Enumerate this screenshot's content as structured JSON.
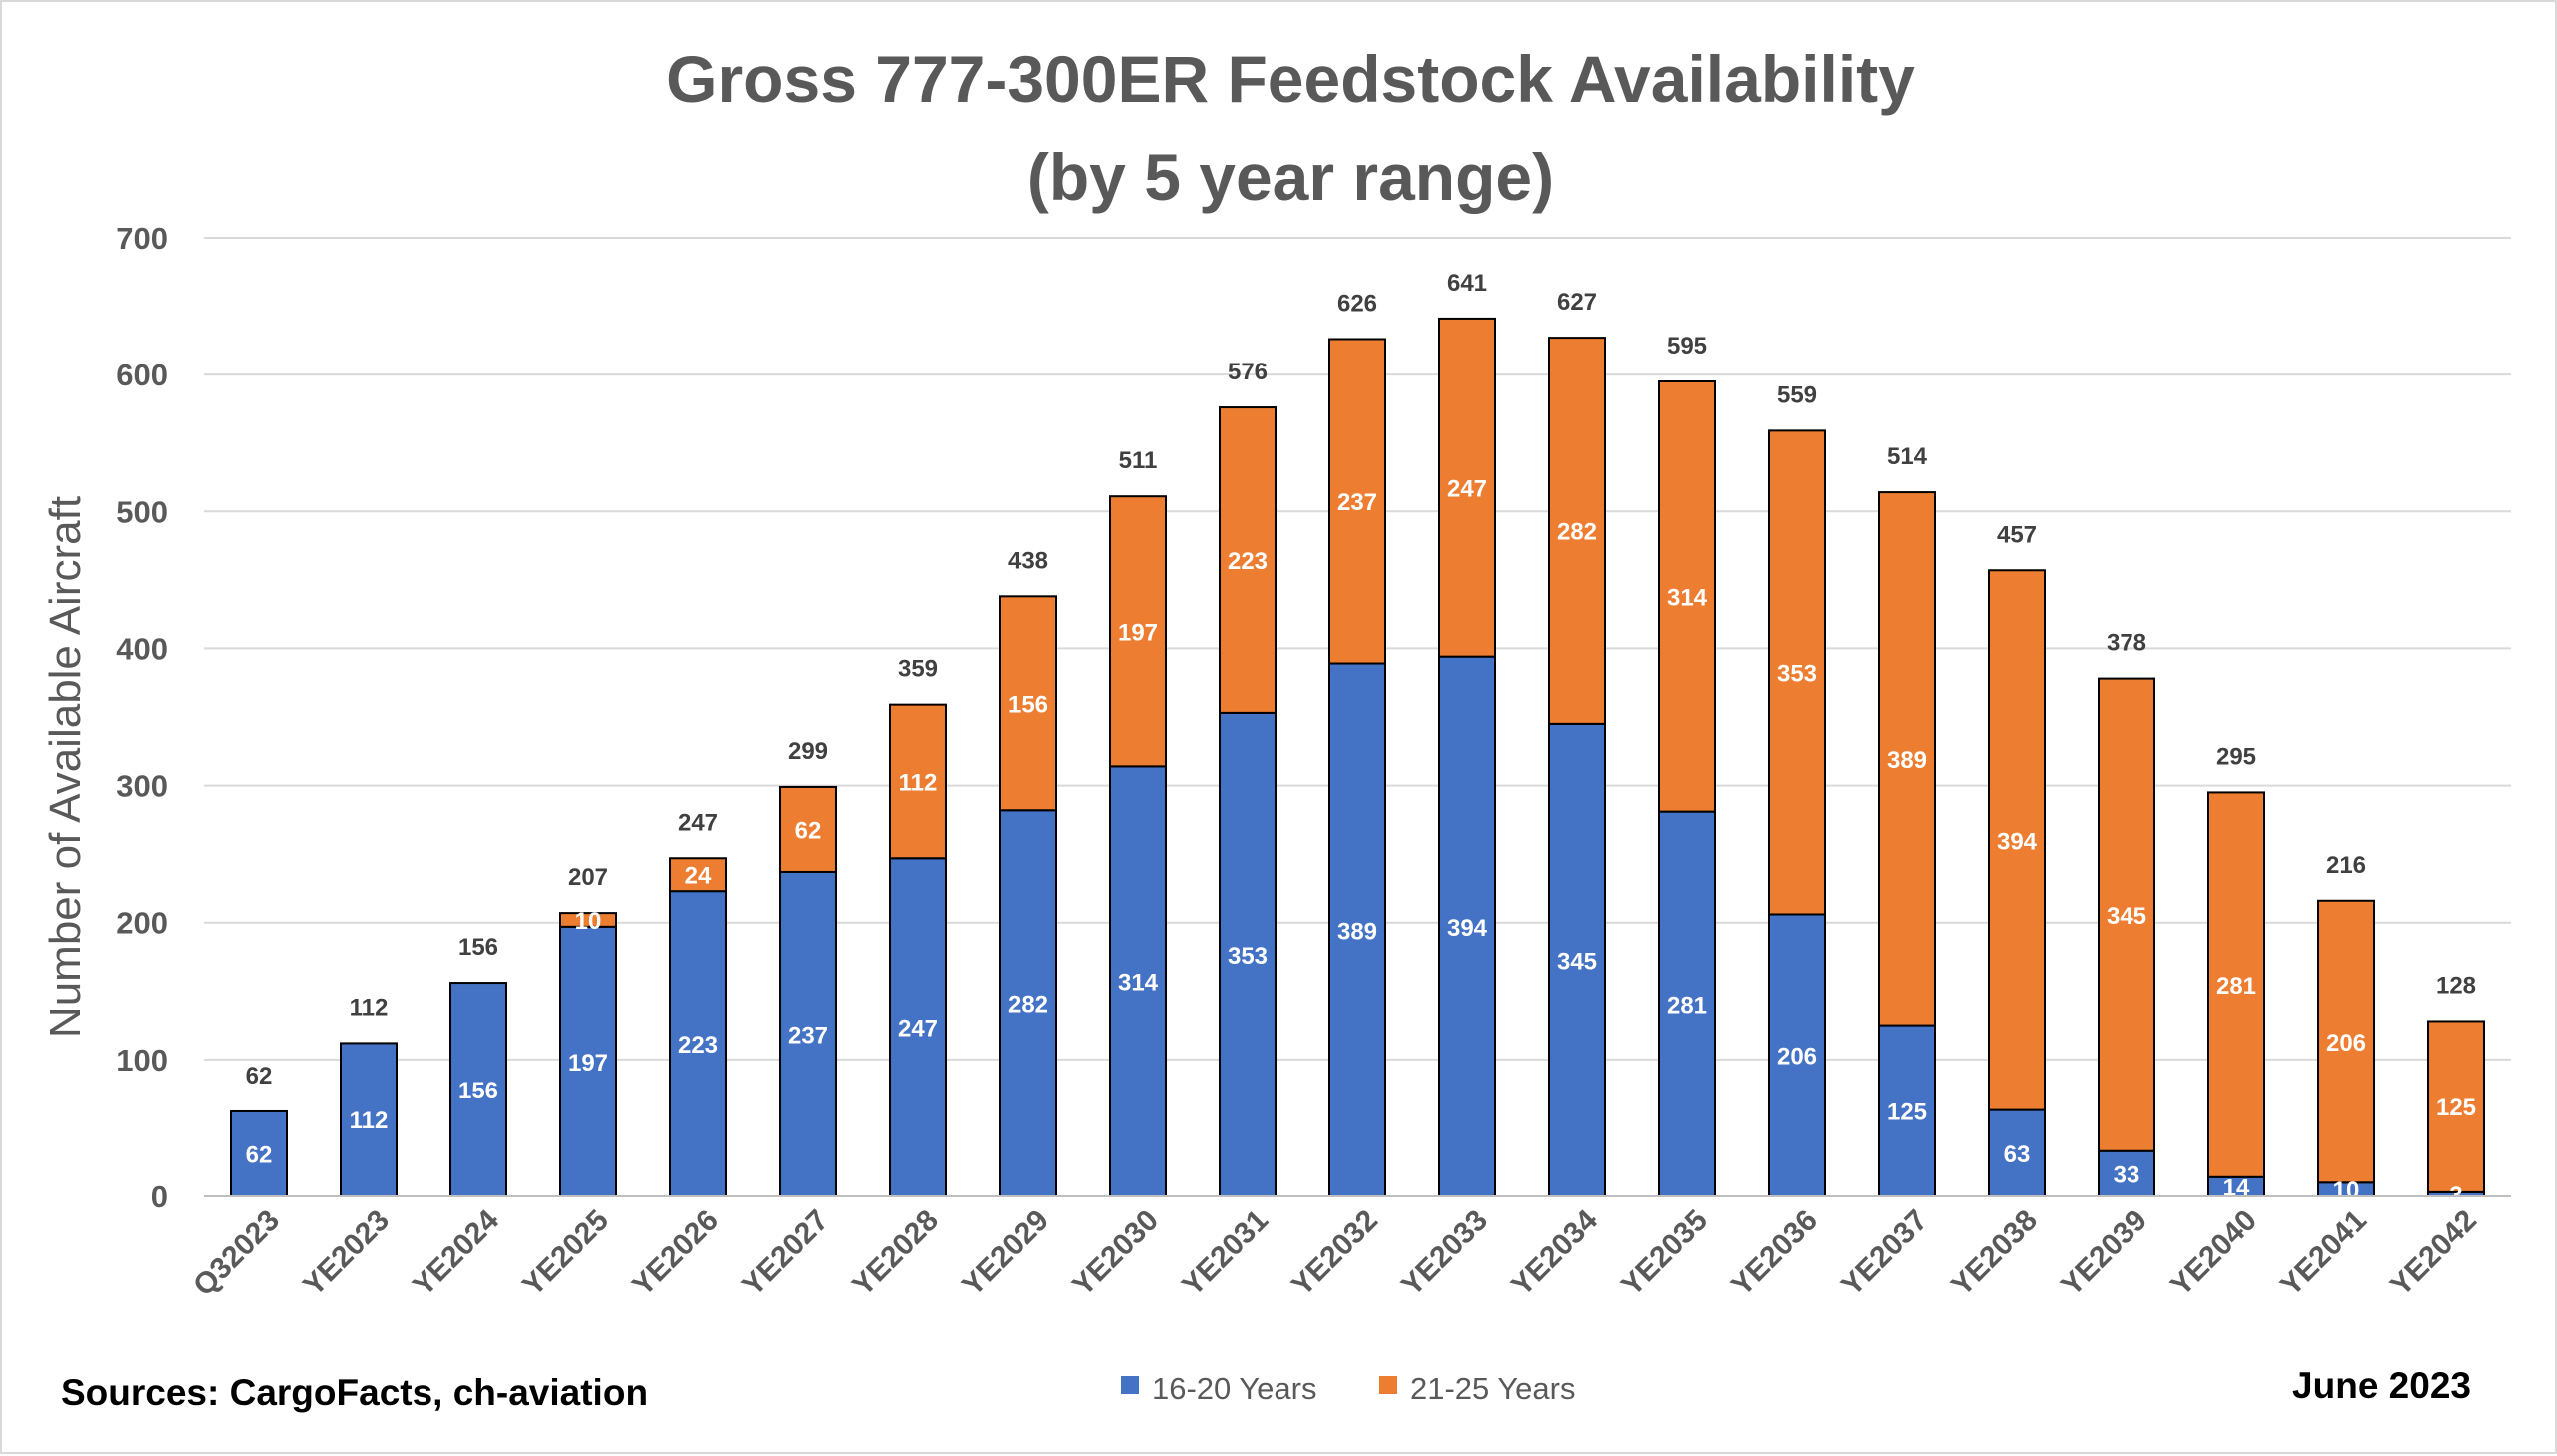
{
  "chart_data": {
    "type": "bar",
    "stacked": true,
    "title_line1": "Gross 777-300ER Feedstock Availability",
    "title_line2": "(by 5 year range)",
    "xlabel": "",
    "ylabel": "Number of Available Aircraft",
    "ylim": [
      0,
      700
    ],
    "yticks": [
      0,
      100,
      200,
      300,
      400,
      500,
      600,
      700
    ],
    "grid": true,
    "legend_position": "bottom",
    "categories": [
      "Q32023",
      "YE2023",
      "YE2024",
      "YE2025",
      "YE2026",
      "YE2027",
      "YE2028",
      "YE2029",
      "YE2030",
      "YE2031",
      "YE2032",
      "YE2033",
      "YE2034",
      "YE2035",
      "YE2036",
      "YE2037",
      "YE2038",
      "YE2039",
      "YE2040",
      "YE2041",
      "YE2042"
    ],
    "series": [
      {
        "name": "16-20 Years",
        "color": "#4472c4",
        "values": [
          62,
          112,
          156,
          197,
          223,
          237,
          247,
          282,
          314,
          353,
          389,
          394,
          345,
          281,
          206,
          125,
          63,
          33,
          14,
          10,
          3
        ]
      },
      {
        "name": "21-25 Years",
        "color": "#ed7d31",
        "values": [
          0,
          0,
          0,
          10,
          24,
          62,
          112,
          156,
          197,
          223,
          237,
          247,
          282,
          314,
          353,
          389,
          394,
          345,
          281,
          206,
          125
        ]
      }
    ],
    "totals": [
      62,
      112,
      156,
      207,
      247,
      299,
      359,
      438,
      511,
      576,
      626,
      641,
      627,
      595,
      559,
      514,
      457,
      378,
      295,
      216,
      128
    ]
  },
  "footer": {
    "source": "Sources: CargoFacts, ch-aviation",
    "date": "June 2023"
  }
}
